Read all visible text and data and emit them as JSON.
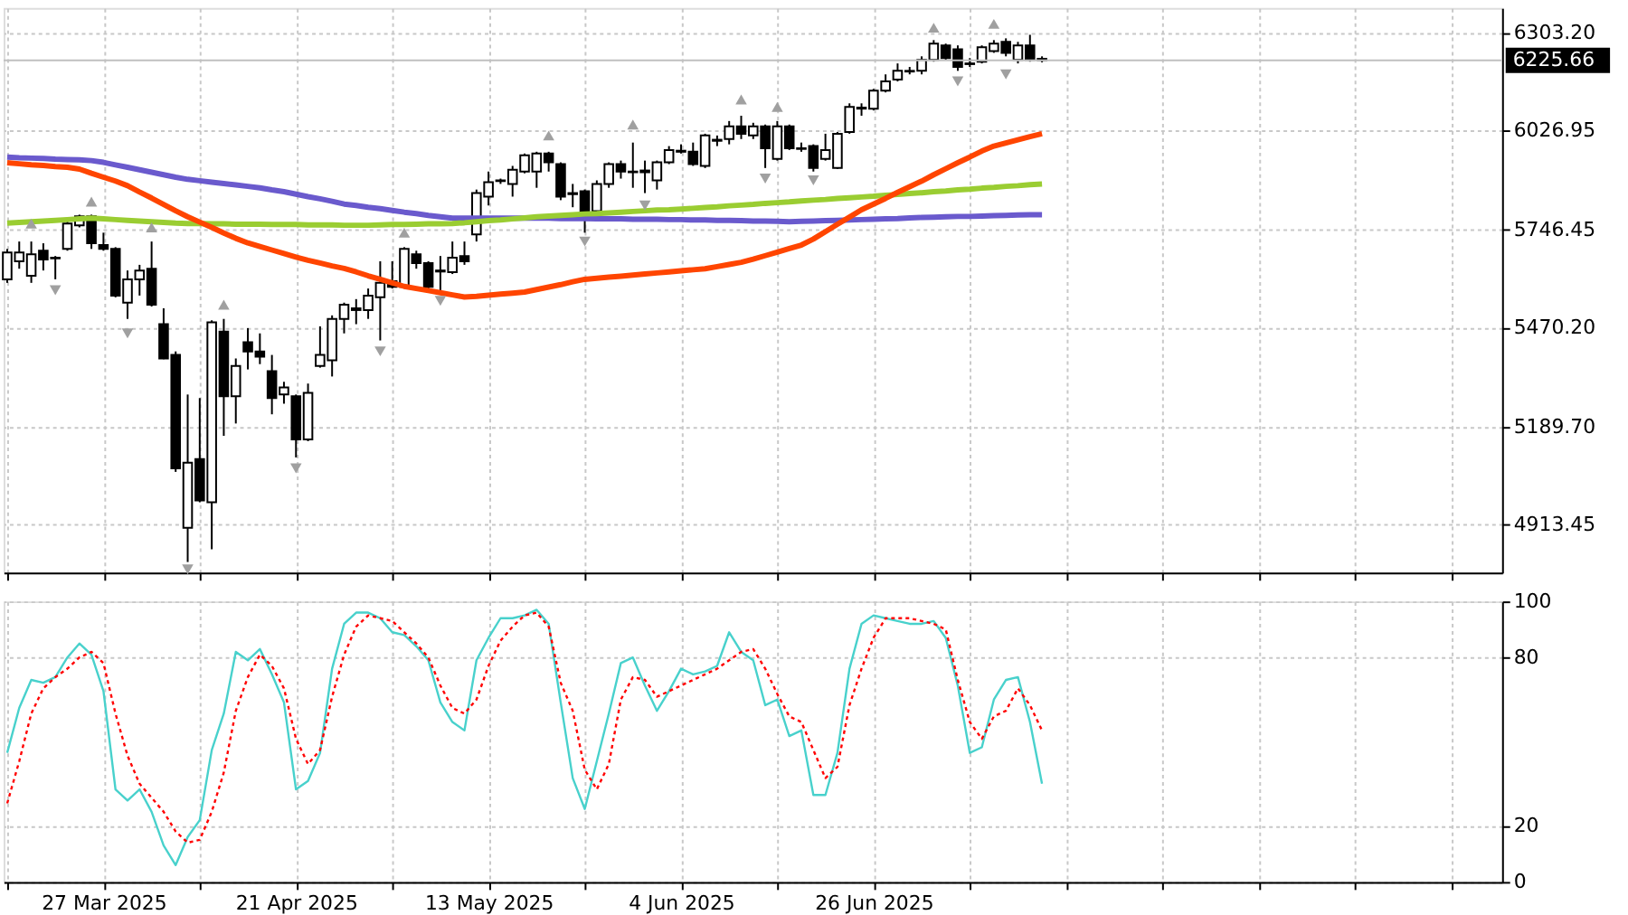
{
  "chart_data": [
    {
      "type": "candlestick",
      "categories": [
        null,
        null,
        null,
        null,
        null,
        null,
        null,
        null,
        null,
        null,
        null,
        null,
        null,
        null,
        null,
        null,
        null,
        null,
        null,
        null,
        null,
        null,
        null,
        null,
        null,
        null,
        null,
        null,
        null,
        null,
        null,
        null,
        null,
        null,
        null,
        null,
        null,
        null,
        null,
        null,
        null,
        null,
        null,
        null,
        null,
        null,
        null,
        null,
        null,
        null,
        null,
        null,
        null,
        null,
        null,
        null,
        null,
        null,
        null,
        null,
        null,
        null,
        null,
        null,
        null,
        null,
        null,
        null,
        null,
        null,
        null,
        null,
        null,
        null,
        null,
        null,
        null,
        null,
        null,
        null,
        null,
        null,
        null,
        null,
        null,
        null,
        null
      ],
      "ohlc": [
        [
          5606,
          5692,
          5596,
          5682
        ],
        [
          5657,
          5713,
          5636,
          5682
        ],
        [
          5616,
          5713,
          5596,
          5677
        ],
        [
          5687,
          5708,
          5631,
          5662
        ],
        [
          5667,
          5672,
          5606,
          5665
        ],
        [
          5692,
          5774,
          5687,
          5764
        ],
        [
          5759,
          5789,
          5753,
          5784
        ],
        [
          5784,
          5789,
          5692,
          5708
        ],
        [
          5703,
          5738,
          5687,
          5692
        ],
        [
          5692,
          5697,
          5555,
          5560
        ],
        [
          5540,
          5631,
          5494,
          5606
        ],
        [
          5606,
          5647,
          5560,
          5631
        ],
        [
          5636,
          5713,
          5529,
          5534
        ],
        [
          5479,
          5524,
          5380,
          5382
        ],
        [
          5392,
          5402,
          5061,
          5071
        ],
        [
          4903,
          5280,
          4806,
          5087
        ],
        [
          5097,
          5270,
          4975,
          4980
        ],
        [
          4975,
          5490,
          4842,
          5484
        ],
        [
          5458,
          5494,
          5163,
          5275
        ],
        [
          5275,
          5382,
          5198,
          5361
        ],
        [
          5428,
          5468,
          5351,
          5402
        ],
        [
          5402,
          5453,
          5366,
          5387
        ],
        [
          5346,
          5392,
          5224,
          5270
        ],
        [
          5280,
          5316,
          5254,
          5300
        ],
        [
          5275,
          5280,
          5102,
          5153
        ],
        [
          5153,
          5311,
          5148,
          5285
        ],
        [
          5361,
          5473,
          5356,
          5392
        ],
        [
          5377,
          5504,
          5331,
          5494
        ],
        [
          5494,
          5540,
          5453,
          5534
        ],
        [
          5519,
          5550,
          5479,
          5524
        ],
        [
          5519,
          5580,
          5494,
          5560
        ],
        [
          5555,
          5657,
          5433,
          5596
        ],
        [
          5601,
          5657,
          5580,
          5585
        ],
        [
          5585,
          5697,
          5580,
          5692
        ],
        [
          5677,
          5687,
          5636,
          5652
        ],
        [
          5652,
          5657,
          5575,
          5585
        ],
        [
          5631,
          5672,
          5570,
          5628
        ],
        [
          5626,
          5713,
          5621,
          5667
        ],
        [
          5672,
          5713,
          5647,
          5657
        ],
        [
          5733,
          5860,
          5713,
          5850
        ],
        [
          5840,
          5911,
          5815,
          5881
        ],
        [
          5886,
          5891,
          5876,
          5884
        ],
        [
          5876,
          5927,
          5840,
          5916
        ],
        [
          5911,
          5962,
          5906,
          5957
        ],
        [
          5911,
          5967,
          5865,
          5962
        ],
        [
          5962,
          5967,
          5911,
          5937
        ],
        [
          5932,
          5937,
          5830,
          5840
        ],
        [
          5850,
          5876,
          5810,
          5847
        ],
        [
          5855,
          5860,
          5738,
          5799
        ],
        [
          5799,
          5886,
          5789,
          5876
        ],
        [
          5876,
          5937,
          5865,
          5932
        ],
        [
          5932,
          5942,
          5891,
          5911
        ],
        [
          5911,
          5993,
          5865,
          5909
        ],
        [
          5909,
          5942,
          5850,
          5914
        ],
        [
          5886,
          5942,
          5860,
          5937
        ],
        [
          5937,
          5983,
          5932,
          5972
        ],
        [
          5967,
          5988,
          5962,
          5970
        ],
        [
          5967,
          5993,
          5927,
          5932
        ],
        [
          5927,
          6018,
          5921,
          6013
        ],
        [
          5998,
          6013,
          5983,
          6001
        ],
        [
          6003,
          6054,
          5988,
          6039
        ],
        [
          6039,
          6069,
          6003,
          6018
        ],
        [
          6013,
          6049,
          6003,
          6039
        ],
        [
          6039,
          6044,
          5921,
          5977
        ],
        [
          5947,
          6054,
          5942,
          6039
        ],
        [
          6039,
          6044,
          5972,
          5977
        ],
        [
          5977,
          5993,
          5967,
          5975
        ],
        [
          5983,
          5988,
          5911,
          5921
        ],
        [
          5947,
          6018,
          5942,
          5972
        ],
        [
          5921,
          6023,
          5918,
          6018
        ],
        [
          6023,
          6104,
          6018,
          6094
        ],
        [
          6089,
          6104,
          6069,
          6092
        ],
        [
          6089,
          6145,
          6084,
          6140
        ],
        [
          6140,
          6186,
          6135,
          6166
        ],
        [
          6171,
          6217,
          6166,
          6196
        ],
        [
          6196,
          6207,
          6186,
          6194
        ],
        [
          6196,
          6237,
          6186,
          6227
        ],
        [
          6227,
          6283,
          6222,
          6273
        ],
        [
          6268,
          6273,
          6227,
          6232
        ],
        [
          6257,
          6268,
          6196,
          6207
        ],
        [
          6217,
          6232,
          6207,
          6215
        ],
        [
          6222,
          6268,
          6217,
          6263
        ],
        [
          6252,
          6283,
          6247,
          6273
        ],
        [
          6278,
          6288,
          6237,
          6247
        ],
        [
          6227,
          6278,
          6217,
          6268
        ],
        [
          6268,
          6298,
          6222,
          6227
        ],
        [
          6230,
          6237,
          6220,
          6226
        ]
      ],
      "series": [
        {
          "type": "line",
          "color": "#6a5acd",
          "marker": "none",
          "line_style": "solid",
          "values": [
            5952,
            5950,
            5949,
            5948,
            5946,
            5945,
            5944,
            5942,
            5937,
            5930,
            5923,
            5916,
            5909,
            5902,
            5895,
            5889,
            5885,
            5881,
            5877,
            5873,
            5869,
            5865,
            5859,
            5854,
            5847,
            5840,
            5834,
            5827,
            5819,
            5815,
            5810,
            5806,
            5801,
            5796,
            5792,
            5787,
            5783,
            5779,
            5779,
            5779,
            5779,
            5779,
            5779,
            5779,
            5779,
            5779,
            5778,
            5778,
            5778,
            5777,
            5777,
            5777,
            5776,
            5776,
            5776,
            5775,
            5775,
            5774,
            5774,
            5773,
            5773,
            5772,
            5771,
            5771,
            5770,
            5769,
            5770,
            5771,
            5772,
            5773,
            5774,
            5775,
            5776,
            5777,
            5778,
            5780,
            5781,
            5782,
            5783,
            5784,
            5784,
            5785,
            5786,
            5787,
            5788,
            5789,
            5789
          ]
        },
        {
          "type": "line",
          "color": "#9acd32",
          "marker": "none",
          "line_style": "solid",
          "values": [
            5765,
            5767,
            5769,
            5771,
            5773,
            5775,
            5777,
            5779,
            5777,
            5775,
            5773,
            5771,
            5769,
            5767,
            5765,
            5764,
            5764,
            5763,
            5763,
            5762,
            5762,
            5762,
            5761,
            5761,
            5761,
            5760,
            5760,
            5760,
            5759,
            5759,
            5759,
            5760,
            5761,
            5761,
            5762,
            5763,
            5763,
            5764,
            5766,
            5769,
            5772,
            5774,
            5777,
            5780,
            5783,
            5785,
            5787,
            5789,
            5791,
            5792,
            5794,
            5796,
            5798,
            5800,
            5802,
            5803,
            5805,
            5807,
            5809,
            5811,
            5814,
            5816,
            5818,
            5821,
            5823,
            5825,
            5828,
            5830,
            5832,
            5835,
            5837,
            5839,
            5841,
            5844,
            5846,
            5849,
            5851,
            5854,
            5856,
            5859,
            5861,
            5864,
            5866,
            5869,
            5871,
            5874,
            5876
          ]
        },
        {
          "type": "line",
          "color": "#ff4500",
          "marker": "none",
          "line_style": "solid",
          "values": [
            5936,
            5933,
            5930,
            5928,
            5925,
            5923,
            5918,
            5906,
            5895,
            5884,
            5871,
            5853,
            5836,
            5818,
            5800,
            5783,
            5768,
            5753,
            5737,
            5722,
            5709,
            5699,
            5689,
            5679,
            5669,
            5660,
            5652,
            5644,
            5637,
            5627,
            5616,
            5606,
            5596,
            5586,
            5580,
            5574,
            5568,
            5562,
            5556,
            5558,
            5561,
            5564,
            5567,
            5570,
            5577,
            5584,
            5591,
            5599,
            5606,
            5609,
            5612,
            5615,
            5618,
            5621,
            5624,
            5627,
            5630,
            5633,
            5636,
            5642,
            5648,
            5654,
            5663,
            5673,
            5683,
            5693,
            5703,
            5720,
            5741,
            5762,
            5782,
            5803,
            5819,
            5835,
            5852,
            5868,
            5884,
            5902,
            5919,
            5936,
            5952,
            5969,
            5983,
            5992,
            6001,
            6010,
            6018
          ]
        },
        {
          "type": "scatter",
          "color": "#a0a0a0",
          "marker": "triangle",
          "values": [
            null,
            null,
            5764,
            null,
            null,
            null,
            null,
            5826,
            null,
            null,
            null,
            null,
            5753,
            null,
            null,
            null,
            null,
            null,
            5534,
            null,
            null,
            null,
            null,
            null,
            null,
            null,
            null,
            null,
            null,
            null,
            null,
            null,
            null,
            5738,
            null,
            null,
            null,
            null,
            null,
            null,
            null,
            null,
            null,
            null,
            null,
            6013,
            null,
            null,
            null,
            null,
            null,
            null,
            6044,
            null,
            null,
            null,
            null,
            null,
            null,
            null,
            null,
            6115,
            null,
            null,
            6094,
            null,
            null,
            null,
            null,
            null,
            null,
            null,
            null,
            null,
            null,
            null,
            null,
            6318,
            null,
            null,
            null,
            null,
            6329,
            null,
            null,
            null,
            null
          ]
        },
        {
          "type": "scatter",
          "color": "#a0a0a0",
          "marker": "triangle",
          "values": [
            null,
            null,
            null,
            null,
            5575,
            null,
            null,
            null,
            null,
            null,
            5453,
            null,
            null,
            null,
            null,
            4785,
            null,
            null,
            null,
            null,
            null,
            null,
            null,
            null,
            5071,
            null,
            null,
            null,
            null,
            null,
            null,
            5402,
            null,
            null,
            null,
            null,
            5545,
            null,
            null,
            null,
            null,
            null,
            null,
            null,
            null,
            null,
            null,
            null,
            5713,
            null,
            null,
            null,
            null,
            5815,
            null,
            null,
            null,
            null,
            null,
            null,
            null,
            null,
            null,
            5891,
            null,
            null,
            null,
            5886,
            null,
            null,
            null,
            null,
            null,
            null,
            null,
            null,
            null,
            null,
            null,
            6166,
            null,
            null,
            null,
            6186,
            null,
            null,
            null
          ]
        }
      ],
      "ylim": [
        4776,
        6374
      ],
      "yticks": [
        4913.45,
        {
          "value": 5189.7,
          "label": "5189.70"
        },
        {
          "value": 5470.2,
          "label": "5470.20"
        },
        5746.45,
        6026.95,
        {
          "value": 6303.2,
          "label": "6303.20"
        }
      ],
      "grid": true,
      "tick_labels": "y",
      "ref_lines": [
        {
          "axis": "y",
          "value": 6225.66,
          "label": "6225.66",
          "color": "#c0c0c0"
        }
      ]
    },
    {
      "type": "line",
      "categories": [
        null,
        null,
        null,
        null,
        null,
        null,
        null,
        null,
        "27 Mar 2025",
        null,
        null,
        null,
        null,
        null,
        null,
        null,
        null,
        null,
        null,
        null,
        null,
        null,
        null,
        null,
        "21 Apr 2025",
        null,
        null,
        null,
        null,
        null,
        null,
        null,
        null,
        null,
        null,
        null,
        null,
        null,
        null,
        null,
        "13 May 2025",
        null,
        null,
        null,
        null,
        null,
        null,
        null,
        null,
        null,
        null,
        null,
        null,
        null,
        null,
        null,
        "4 Jun 2025",
        null,
        null,
        null,
        null,
        null,
        null,
        null,
        null,
        null,
        null,
        null,
        null,
        null,
        null,
        null,
        "26 Jun 2025",
        null,
        null,
        null,
        null,
        null,
        null,
        null,
        null,
        null,
        null,
        null,
        null,
        null,
        null
      ],
      "series": [
        {
          "color": "#48d1cc",
          "line_style": "solid",
          "values": [
            46,
            62,
            72,
            71,
            73,
            80,
            85,
            81,
            68,
            33,
            29,
            33,
            25,
            13,
            6,
            16,
            22,
            47,
            60,
            82,
            79,
            83,
            74,
            64,
            33,
            36,
            46,
            76,
            92,
            96,
            96,
            94,
            89,
            88,
            84,
            79,
            64,
            57,
            54,
            79,
            87,
            94,
            94,
            95,
            97,
            92,
            64,
            37,
            26,
            43,
            60,
            78,
            80,
            70,
            61,
            68,
            76,
            74,
            75,
            77,
            89,
            82,
            79,
            63,
            65,
            52,
            54,
            31,
            31,
            46,
            76,
            92,
            95,
            94,
            93,
            92,
            92,
            93,
            87,
            70,
            46,
            48,
            65,
            72,
            73,
            57,
            35
          ]
        },
        {
          "color": "#ff0000",
          "line_style": "dotted",
          "values": [
            28,
            43,
            60,
            69,
            73,
            76,
            80,
            82,
            78,
            60,
            45,
            35,
            30,
            25,
            18,
            14,
            15,
            25,
            39,
            61,
            73,
            81,
            77,
            69,
            51,
            42,
            47,
            66,
            81,
            91,
            95,
            94,
            93,
            89,
            85,
            80,
            70,
            62,
            60,
            65,
            77,
            86,
            91,
            95,
            96,
            91,
            71,
            61,
            40,
            33,
            42,
            65,
            73,
            72,
            66,
            68,
            70,
            72,
            74,
            76,
            79,
            82,
            83,
            76,
            67,
            59,
            57,
            47,
            37,
            41,
            63,
            76,
            87,
            94,
            94,
            94,
            93,
            92,
            90,
            72,
            57,
            51,
            59,
            61,
            69,
            63,
            54
          ]
        }
      ],
      "ylim": [
        0,
        100
      ],
      "yticks": [
        0,
        20,
        80,
        100
      ],
      "grid": true
    }
  ]
}
